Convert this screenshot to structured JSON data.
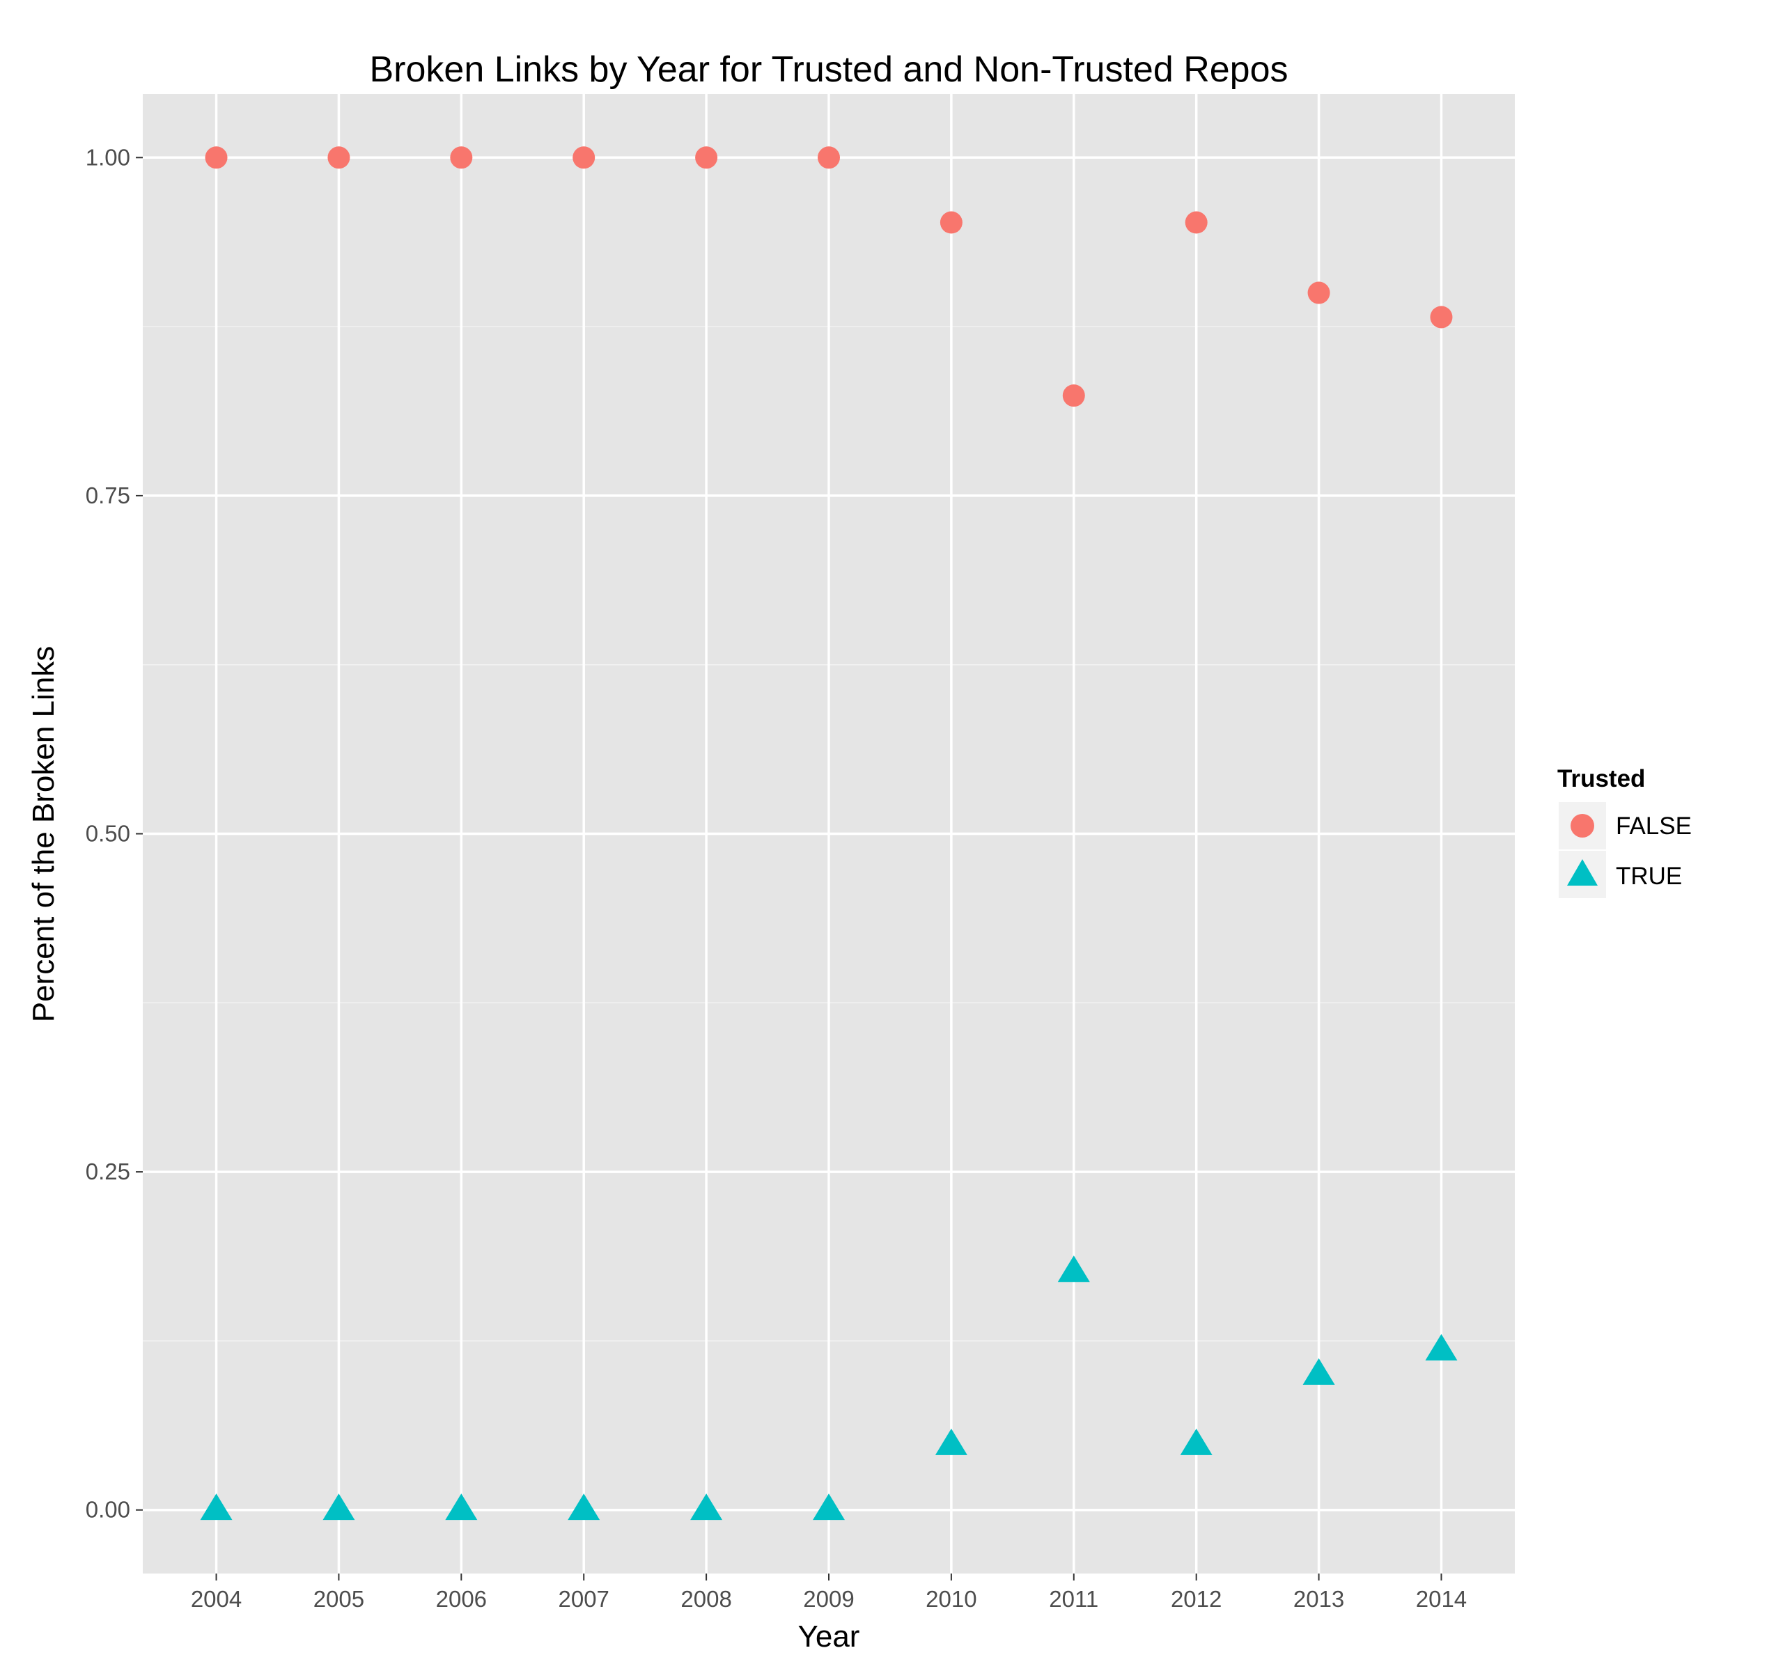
{
  "chart_data": {
    "type": "scatter",
    "title": "Broken Links by Year for Trusted and Non-Trusted Repos",
    "xlabel": "Year",
    "ylabel": "Percent of the Broken Links",
    "x": [
      2004,
      2005,
      2006,
      2007,
      2008,
      2009,
      2010,
      2011,
      2012,
      2013,
      2014
    ],
    "xlim": [
      2003.4,
      2014.6
    ],
    "ylim": [
      -0.047,
      1.047
    ],
    "x_ticks": [
      "2004",
      "2005",
      "2006",
      "2007",
      "2008",
      "2009",
      "2010",
      "2011",
      "2012",
      "2013",
      "2014"
    ],
    "y_ticks": [
      {
        "value": 0.0,
        "label": "0.00"
      },
      {
        "value": 0.25,
        "label": "0.25"
      },
      {
        "value": 0.5,
        "label": "0.50"
      },
      {
        "value": 0.75,
        "label": "0.75"
      },
      {
        "value": 1.0,
        "label": "1.00"
      }
    ],
    "grid": true,
    "legend": {
      "title": "Trusted",
      "placement": "right"
    },
    "series": [
      {
        "name": "FALSE",
        "shape": "circle",
        "color": "#F8766D",
        "values": [
          1.0,
          1.0,
          1.0,
          1.0,
          1.0,
          1.0,
          0.952,
          0.824,
          0.952,
          0.9,
          0.882
        ]
      },
      {
        "name": "TRUE",
        "shape": "triangle",
        "color": "#00BFC4",
        "values": [
          0.0,
          0.0,
          0.0,
          0.0,
          0.0,
          0.0,
          0.048,
          0.176,
          0.048,
          0.1,
          0.118
        ]
      }
    ]
  }
}
